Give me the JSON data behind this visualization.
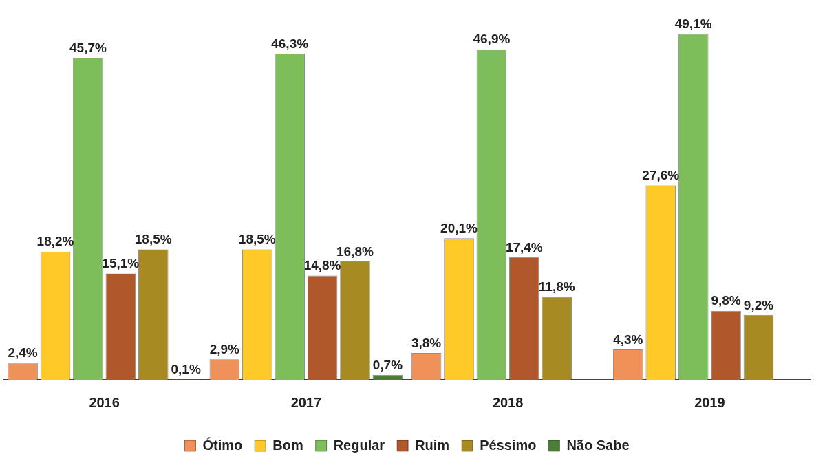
{
  "chart_data": {
    "type": "bar",
    "categories": [
      "2016",
      "2017",
      "2018",
      "2019"
    ],
    "legend": "bottom",
    "series": [
      {
        "name": "Ótimo",
        "color": "#f0915a",
        "values": [
          2.4,
          2.9,
          3.8,
          4.3
        ],
        "value_labels": [
          "2,4%",
          "2,9%",
          "3,8%",
          "4,3%"
        ]
      },
      {
        "name": "Bom",
        "color": "#ffc928",
        "values": [
          18.2,
          18.5,
          20.1,
          27.6
        ],
        "value_labels": [
          "18,2%",
          "18,5%",
          "20,1%",
          "27,6%"
        ]
      },
      {
        "name": "Regular",
        "color": "#7dbd5a",
        "values": [
          45.7,
          46.3,
          46.9,
          49.1
        ],
        "value_labels": [
          "45,7%",
          "46,3%",
          "46,9%",
          "49,1%"
        ]
      },
      {
        "name": "Ruim",
        "color": "#b0582c",
        "values": [
          15.1,
          14.8,
          17.4,
          9.8
        ],
        "value_labels": [
          "15,1%",
          "14,8%",
          "17,4%",
          "9,8%"
        ]
      },
      {
        "name": "Péssimo",
        "color": "#a88a22",
        "values": [
          18.5,
          16.8,
          11.8,
          9.2
        ],
        "value_labels": [
          "18,5%",
          "16,8%",
          "11,8%",
          "9,2%"
        ]
      },
      {
        "name": "Não Sabe",
        "color": "#4e7d36",
        "values": [
          0.1,
          0.7,
          null,
          null
        ],
        "value_labels": [
          "0,1%",
          "0,7%",
          null,
          null
        ]
      }
    ]
  }
}
